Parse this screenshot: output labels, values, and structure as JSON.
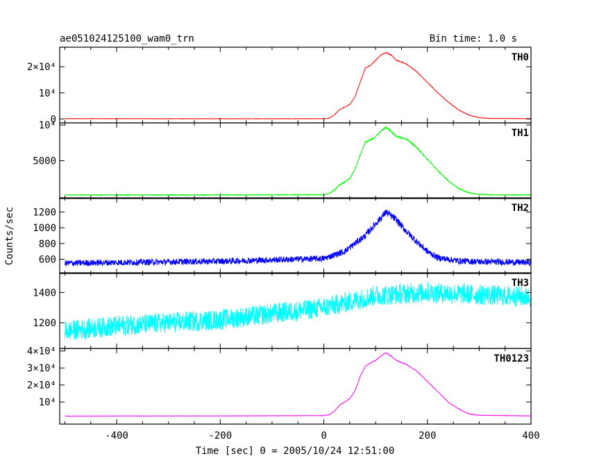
{
  "header": {
    "title": "ae051024125100_wam0_trn",
    "bin_time": "Bin time: 1.0 s"
  },
  "chart_data": {
    "type": "line",
    "xlabel": "Time [sec] 0 = 2005/10/24 12:51:00",
    "ylabel": "Counts/sec",
    "xlim": [
      -510,
      400
    ],
    "xticks": [
      -400,
      -200,
      0,
      200,
      400
    ],
    "panels": [
      {
        "name": "TH0",
        "color": "#ff0000",
        "ylim": [
          -1500,
          27500
        ],
        "yticks": [
          {
            "value": 0,
            "label": "0"
          },
          {
            "value": 10000,
            "label": "10⁴"
          },
          {
            "value": 20000,
            "label": "2×10⁴"
          }
        ],
        "baseline": 100,
        "noise": 60,
        "points": [
          [
            -510,
            120
          ],
          [
            -400,
            100
          ],
          [
            -200,
            80
          ],
          [
            0,
            100
          ],
          [
            10,
            300
          ],
          [
            20,
            1500
          ],
          [
            30,
            3500
          ],
          [
            40,
            4500
          ],
          [
            50,
            5500
          ],
          [
            60,
            8500
          ],
          [
            70,
            14000
          ],
          [
            80,
            19500
          ],
          [
            90,
            20500
          ],
          [
            100,
            22500
          ],
          [
            110,
            24500
          ],
          [
            120,
            25500
          ],
          [
            130,
            24500
          ],
          [
            140,
            22500
          ],
          [
            160,
            21000
          ],
          [
            180,
            18000
          ],
          [
            200,
            14000
          ],
          [
            220,
            10000
          ],
          [
            240,
            6500
          ],
          [
            260,
            3500
          ],
          [
            280,
            1500
          ],
          [
            300,
            500
          ],
          [
            320,
            200
          ],
          [
            400,
            120
          ]
        ]
      },
      {
        "name": "TH1",
        "color": "#00ff00",
        "ylim": [
          -300,
          10300
        ],
        "yticks": [
          {
            "value": 5000,
            "label": "5000"
          },
          {
            "value": 10000,
            "label": "10⁴"
          }
        ],
        "baseline": 200,
        "noise": 40,
        "points": [
          [
            -510,
            200
          ],
          [
            -400,
            200
          ],
          [
            -200,
            200
          ],
          [
            0,
            240
          ],
          [
            10,
            400
          ],
          [
            20,
            900
          ],
          [
            30,
            1600
          ],
          [
            40,
            2000
          ],
          [
            50,
            2500
          ],
          [
            60,
            3800
          ],
          [
            70,
            5800
          ],
          [
            80,
            7600
          ],
          [
            90,
            7900
          ],
          [
            100,
            8400
          ],
          [
            110,
            9100
          ],
          [
            120,
            9700
          ],
          [
            130,
            9100
          ],
          [
            140,
            8400
          ],
          [
            160,
            8000
          ],
          [
            180,
            6800
          ],
          [
            200,
            5200
          ],
          [
            220,
            3600
          ],
          [
            240,
            2200
          ],
          [
            260,
            1100
          ],
          [
            280,
            500
          ],
          [
            300,
            280
          ],
          [
            320,
            220
          ],
          [
            400,
            200
          ]
        ]
      },
      {
        "name": "TH2",
        "color": "#0000ff",
        "ylim": [
          420,
          1380
        ],
        "yticks": [
          {
            "value": 600,
            "label": "600"
          },
          {
            "value": 800,
            "label": "800"
          },
          {
            "value": 1000,
            "label": "1000"
          },
          {
            "value": 1200,
            "label": "1200"
          }
        ],
        "baseline": 560,
        "noise": 25,
        "points": [
          [
            -510,
            550
          ],
          [
            -400,
            560
          ],
          [
            -200,
            575
          ],
          [
            0,
            610
          ],
          [
            40,
            700
          ],
          [
            80,
            900
          ],
          [
            100,
            1050
          ],
          [
            120,
            1200
          ],
          [
            140,
            1100
          ],
          [
            160,
            950
          ],
          [
            180,
            820
          ],
          [
            200,
            700
          ],
          [
            220,
            620
          ],
          [
            260,
            580
          ],
          [
            300,
            570
          ],
          [
            400,
            560
          ]
        ]
      },
      {
        "name": "TH3",
        "color": "#00ffff",
        "ylim": [
          1030,
          1530
        ],
        "yticks": [
          {
            "value": 1200,
            "label": "1200"
          },
          {
            "value": 1400,
            "label": "1400"
          }
        ],
        "baseline": 1150,
        "noise": 55,
        "points": [
          [
            -510,
            1140
          ],
          [
            -400,
            1180
          ],
          [
            -200,
            1220
          ],
          [
            0,
            1300
          ],
          [
            100,
            1380
          ],
          [
            200,
            1400
          ],
          [
            400,
            1370
          ]
        ]
      },
      {
        "name": "TH0123",
        "color": "#ff00ff",
        "ylim": [
          -3000,
          41500
        ],
        "yticks": [
          {
            "value": 10000,
            "label": "10⁴"
          },
          {
            "value": 20000,
            "label": "2×10⁴"
          },
          {
            "value": 30000,
            "label": "3×10⁴"
          },
          {
            "value": 40000,
            "label": "4×10⁴"
          }
        ],
        "baseline": 1700,
        "noise": 90,
        "points": [
          [
            -510,
            1700
          ],
          [
            -400,
            1750
          ],
          [
            -200,
            1800
          ],
          [
            0,
            2000
          ],
          [
            10,
            2500
          ],
          [
            20,
            4500
          ],
          [
            30,
            8000
          ],
          [
            40,
            10000
          ],
          [
            50,
            12000
          ],
          [
            60,
            16500
          ],
          [
            70,
            25000
          ],
          [
            80,
            31000
          ],
          [
            90,
            33000
          ],
          [
            100,
            34500
          ],
          [
            110,
            37000
          ],
          [
            120,
            39000
          ],
          [
            130,
            37000
          ],
          [
            140,
            34500
          ],
          [
            160,
            32000
          ],
          [
            180,
            28000
          ],
          [
            200,
            22000
          ],
          [
            220,
            16000
          ],
          [
            240,
            10000
          ],
          [
            260,
            6000
          ],
          [
            280,
            3000
          ],
          [
            300,
            2200
          ],
          [
            400,
            1800
          ]
        ]
      }
    ]
  }
}
